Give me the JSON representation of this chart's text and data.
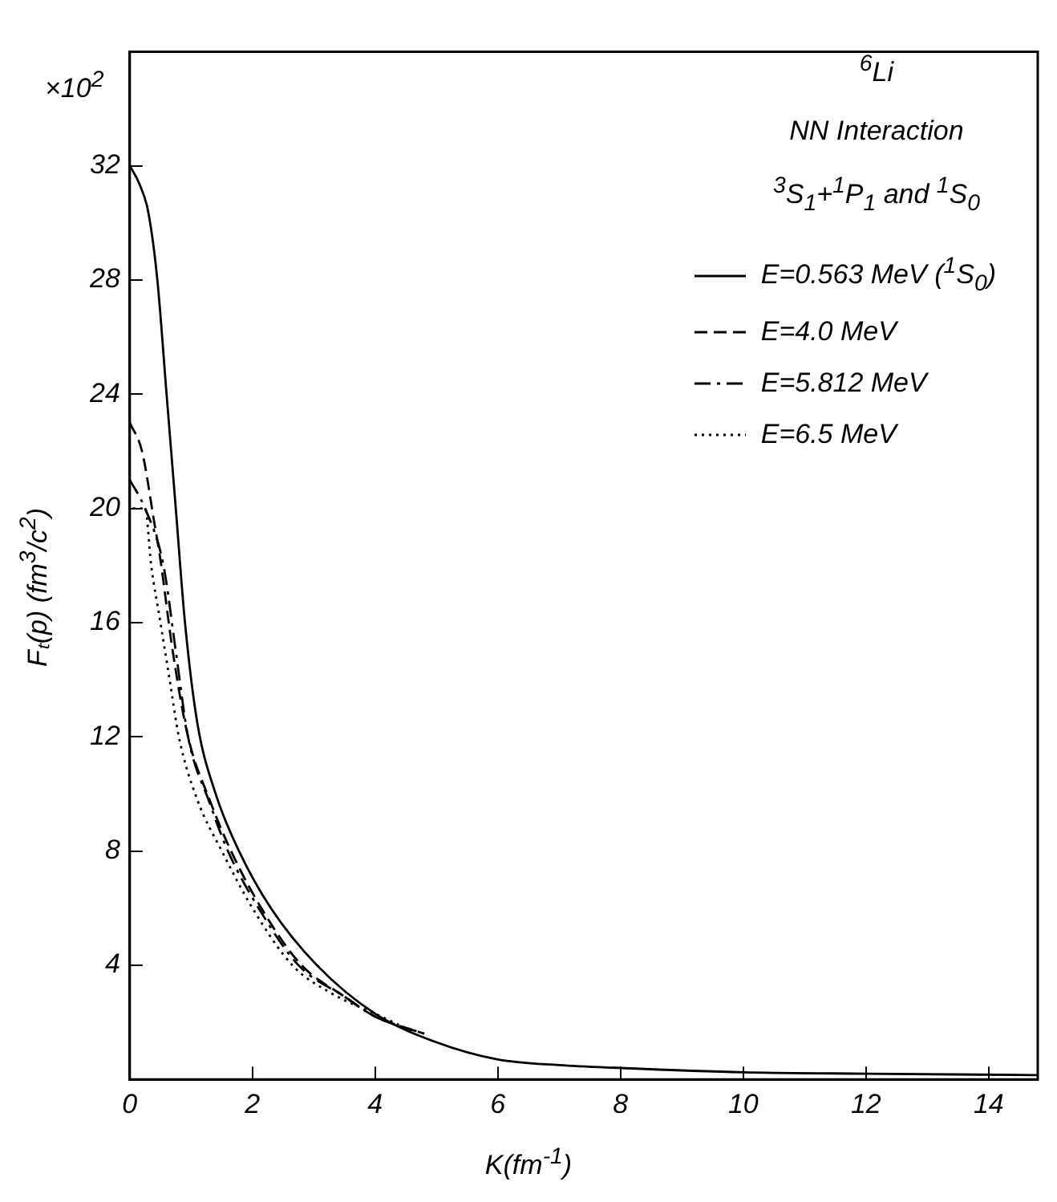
{
  "chart_data": {
    "type": "line",
    "xlabel": "K(fm$^{-1}$)",
    "ylabel": "Fₜ(p) (fm$^{3}$/c$^{2}$)",
    "annotations": [
      "×10$^{2}$",
      "$^{6}$Li",
      "NN Interaction",
      "$^{3}$S$_{1}$+$^{1}$P$_{1}$ and $^{1}$S$_{0}$"
    ],
    "xlim": [
      0,
      14.8
    ],
    "xticks": [
      0,
      2,
      4,
      6,
      8,
      10,
      12,
      14
    ],
    "ylim": [
      0,
      36
    ],
    "yticks": [
      4,
      8,
      12,
      16,
      20,
      24,
      28,
      32
    ],
    "grid": false,
    "legend": "top right",
    "marker": "none",
    "series": [
      {
        "name": "E=0.563 MeV ($^{1}$S$_{0}$)",
        "color": "#000000",
        "line_style": "solid",
        "x": [
          0,
          0.15,
          0.3,
          0.45,
          0.6,
          0.75,
          0.9,
          1.1,
          1.4,
          1.78,
          2.3,
          3.05,
          4,
          5,
          6,
          7,
          8,
          10,
          12,
          14.8
        ],
        "values": [
          32,
          31.4,
          30.4,
          28,
          24,
          20,
          16,
          12.5,
          10,
          8,
          6,
          4,
          2.3,
          1.3,
          0.7,
          0.5,
          0.4,
          0.25,
          0.2,
          0.15
        ]
      },
      {
        "name": "E=4.0 MeV",
        "color": "#000000",
        "line_style": "dashed",
        "x": [
          0,
          0.2,
          0.4,
          0.5,
          0.7,
          0.95,
          1.3,
          1.65,
          2.2,
          2.8,
          3.5,
          4,
          4.8
        ],
        "values": [
          23,
          22,
          19.5,
          18.2,
          15,
          12,
          9.8,
          8,
          5.8,
          4,
          2.9,
          2.2,
          1.6
        ]
      },
      {
        "name": "E=5.812 MeV",
        "color": "#000000",
        "line_style": "dashdot",
        "x": [
          0,
          0.25,
          0.55,
          0.75,
          0.95,
          1.3,
          1.6,
          2.1,
          2.75,
          3.5,
          4,
          4.8
        ],
        "values": [
          21,
          20,
          18,
          15,
          12,
          9.7,
          8,
          6,
          4,
          2.9,
          2.2,
          1.6
        ]
      },
      {
        "name": "E=6.5 MeV",
        "color": "#000000",
        "line_style": "dotted",
        "x": [
          0.05,
          0.25,
          0.35,
          0.5,
          0.65,
          0.8,
          1.1,
          1.5,
          2,
          2.65,
          3.3,
          4,
          4.6
        ],
        "values": [
          20,
          20,
          18,
          16,
          14,
          12,
          9.8,
          8,
          6,
          4,
          3,
          2.3,
          1.7
        ]
      }
    ]
  }
}
